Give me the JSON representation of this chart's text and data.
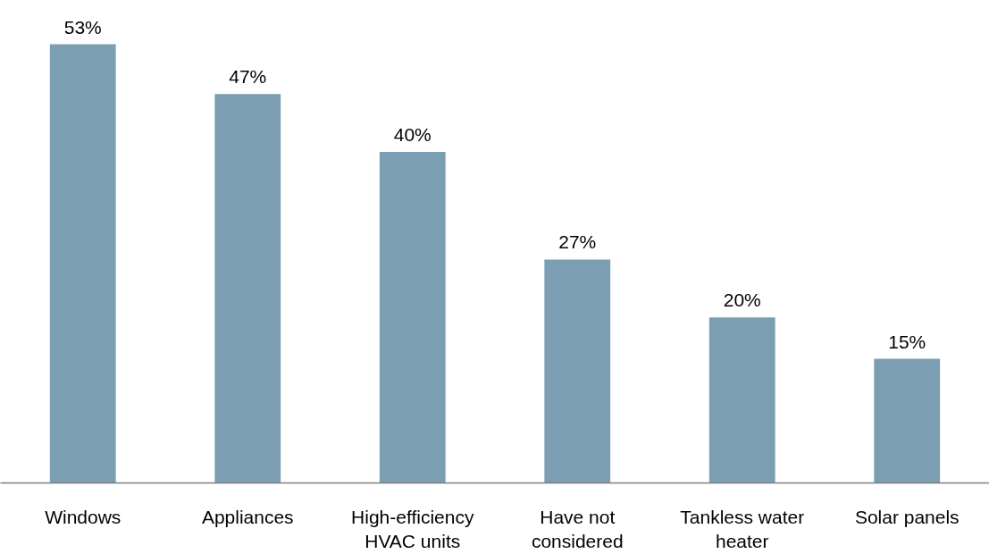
{
  "chart_data": {
    "type": "bar",
    "categories": [
      "Windows",
      "Appliances",
      "High-efficiency\nHVAC units",
      "Have not\nconsidered",
      "Tankless water\nheater",
      "Solar panels"
    ],
    "values": [
      53,
      47,
      40,
      27,
      20,
      15
    ],
    "color": "#7b9eb3",
    "data_labels": true,
    "value_labels": [
      "53%",
      "47%",
      "40%",
      "27%",
      "20%",
      "15%"
    ],
    "grid": false
  }
}
